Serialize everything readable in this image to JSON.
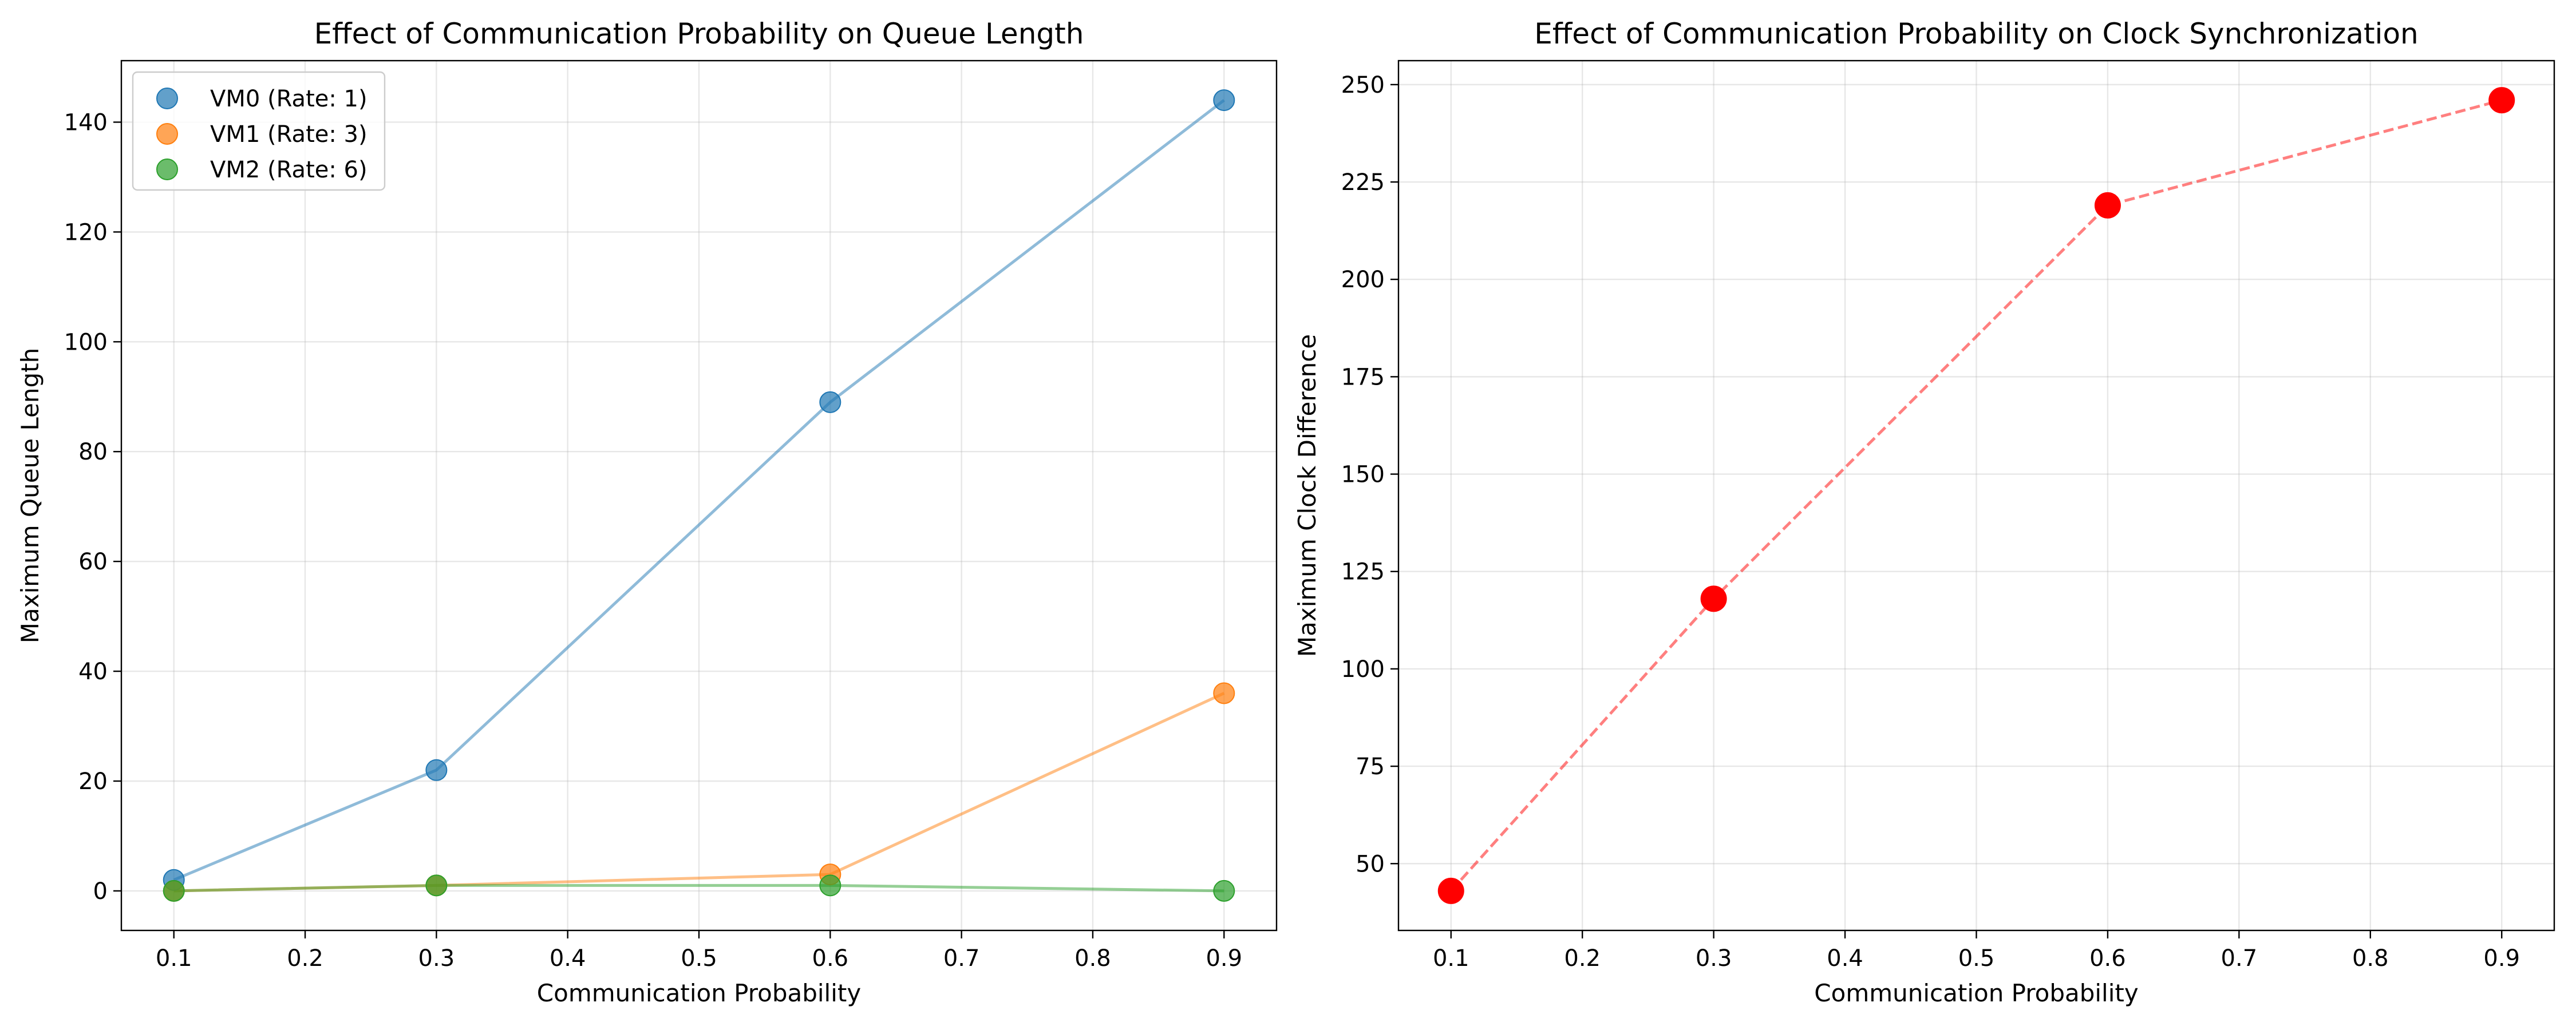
{
  "chart_data": [
    {
      "type": "line",
      "title": "Effect of Communication Probability on Queue Length",
      "xlabel": "Communication Probability",
      "ylabel": "Maximum Queue Length",
      "xlim": [
        0.06,
        0.94
      ],
      "ylim": [
        -7.2,
        151.2
      ],
      "xticks": [
        0.1,
        0.2,
        0.3,
        0.4,
        0.5,
        0.6,
        0.7,
        0.8,
        0.9
      ],
      "xtick_labels": [
        "0.1",
        "0.2",
        "0.3",
        "0.4",
        "0.5",
        "0.6",
        "0.7",
        "0.8",
        "0.9"
      ],
      "yticks": [
        0,
        20,
        40,
        60,
        80,
        100,
        120,
        140
      ],
      "ytick_labels": [
        "0",
        "20",
        "40",
        "60",
        "80",
        "100",
        "120",
        "140"
      ],
      "grid": true,
      "legend_position": "upper-left",
      "x": [
        0.1,
        0.3,
        0.6,
        0.9
      ],
      "series": [
        {
          "name": "VM0 (Rate: 1)",
          "values": [
            2,
            22,
            89,
            144
          ],
          "color": "#1f77b4",
          "line_style": "solid"
        },
        {
          "name": "VM1 (Rate: 3)",
          "values": [
            0,
            1,
            3,
            36
          ],
          "color": "#ff7f0e",
          "line_style": "solid"
        },
        {
          "name": "VM2 (Rate: 6)",
          "values": [
            0,
            1,
            1,
            0
          ],
          "color": "#2ca02c",
          "line_style": "solid"
        }
      ]
    },
    {
      "type": "line",
      "title": "Effect of Communication Probability on Clock Synchronization",
      "xlabel": "Communication Probability",
      "ylabel": "Maximum Clock Difference",
      "xlim": [
        0.06,
        0.94
      ],
      "ylim": [
        32.85,
        256.15
      ],
      "xticks": [
        0.1,
        0.2,
        0.3,
        0.4,
        0.5,
        0.6,
        0.7,
        0.8,
        0.9
      ],
      "xtick_labels": [
        "0.1",
        "0.2",
        "0.3",
        "0.4",
        "0.5",
        "0.6",
        "0.7",
        "0.8",
        "0.9"
      ],
      "yticks": [
        50,
        75,
        100,
        125,
        150,
        175,
        200,
        225,
        250
      ],
      "ytick_labels": [
        "50",
        "75",
        "100",
        "125",
        "150",
        "175",
        "200",
        "225",
        "250"
      ],
      "grid": true,
      "x": [
        0.1,
        0.3,
        0.6,
        0.9
      ],
      "series": [
        {
          "values": [
            43,
            118,
            219,
            246
          ],
          "color": "#ff0000",
          "line_style": "dashed"
        }
      ]
    }
  ]
}
